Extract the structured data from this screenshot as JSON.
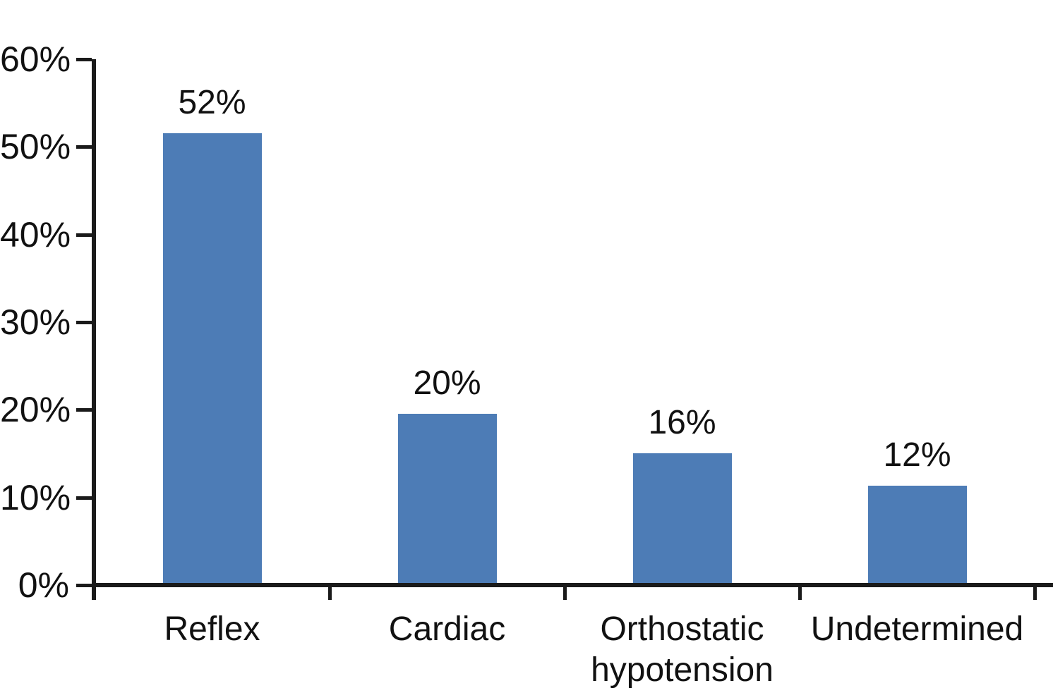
{
  "chart_data": {
    "type": "bar",
    "title": "",
    "xlabel": "",
    "ylabel": "",
    "categories": [
      "Reflex",
      "Cardiac",
      "Orthostatic hypotension",
      "Undetermined"
    ],
    "category_label_lines": [
      [
        "Reflex"
      ],
      [
        "Cardiac"
      ],
      [
        "Orthostatic",
        "hypotension"
      ],
      [
        "Undetermined"
      ]
    ],
    "values": [
      52,
      20,
      16,
      12
    ],
    "data_labels": [
      "52%",
      "20%",
      "16%",
      "12%"
    ],
    "ylim": [
      0,
      60
    ],
    "ytick_step": 10,
    "ytick_labels": [
      "0%",
      "10%",
      "20%",
      "30%",
      "40%",
      "50%",
      "60%"
    ],
    "grid": false,
    "legend": "none",
    "background_color": "#ffffff",
    "bar_color": "#4d7cb6",
    "axis_color": "#1a1a1a",
    "text_color": "#111111",
    "rendered_bar_heights_pct": [
      51.3,
      19.3,
      14.8,
      11.1
    ]
  }
}
